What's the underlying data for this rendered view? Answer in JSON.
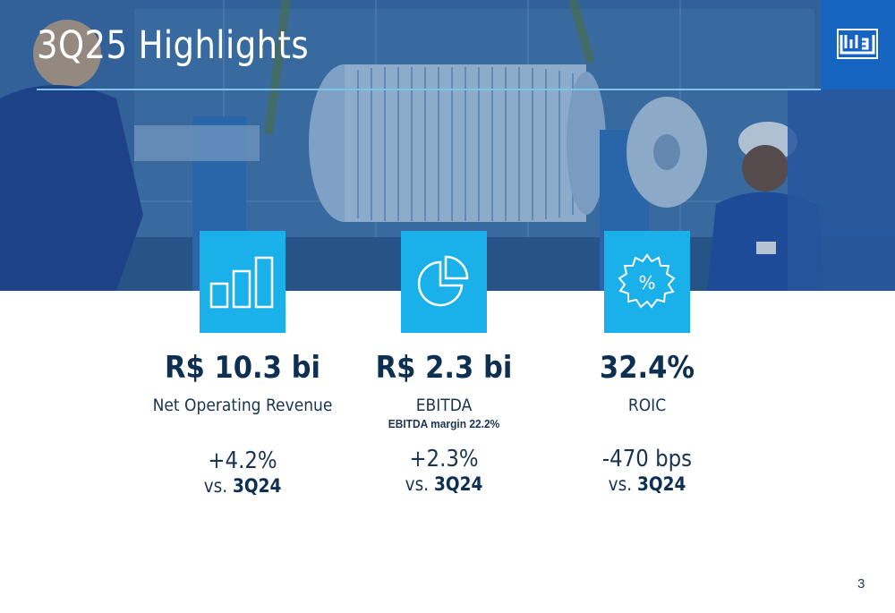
{
  "slide": {
    "title": "3Q25 Highlights",
    "page_number": "3",
    "logo_text": "WEG"
  },
  "kpis": [
    {
      "icon": "bar-chart-icon",
      "value": "R$ 10.3 bi",
      "label": "Net Operating Revenue",
      "sublabel": "",
      "change": "+4.2%",
      "vs_prefix": "vs.",
      "vs_period": "3Q24"
    },
    {
      "icon": "pie-chart-icon",
      "value": "R$ 2.3 bi",
      "label": "EBITDA",
      "sublabel": "EBITDA margin 22.2%",
      "change": "+2.3%",
      "vs_prefix": "vs.",
      "vs_period": "3Q24"
    },
    {
      "icon": "percent-badge-icon",
      "value": "32.4%",
      "label": "ROIC",
      "sublabel": "",
      "change": "-470 bps",
      "vs_prefix": "vs.",
      "vs_period": "3Q24"
    }
  ],
  "colors": {
    "tile": "#1ab0ea",
    "navy": "#0d2f52",
    "logo_blue": "#1565c0",
    "rule": "#7ec4ea"
  }
}
